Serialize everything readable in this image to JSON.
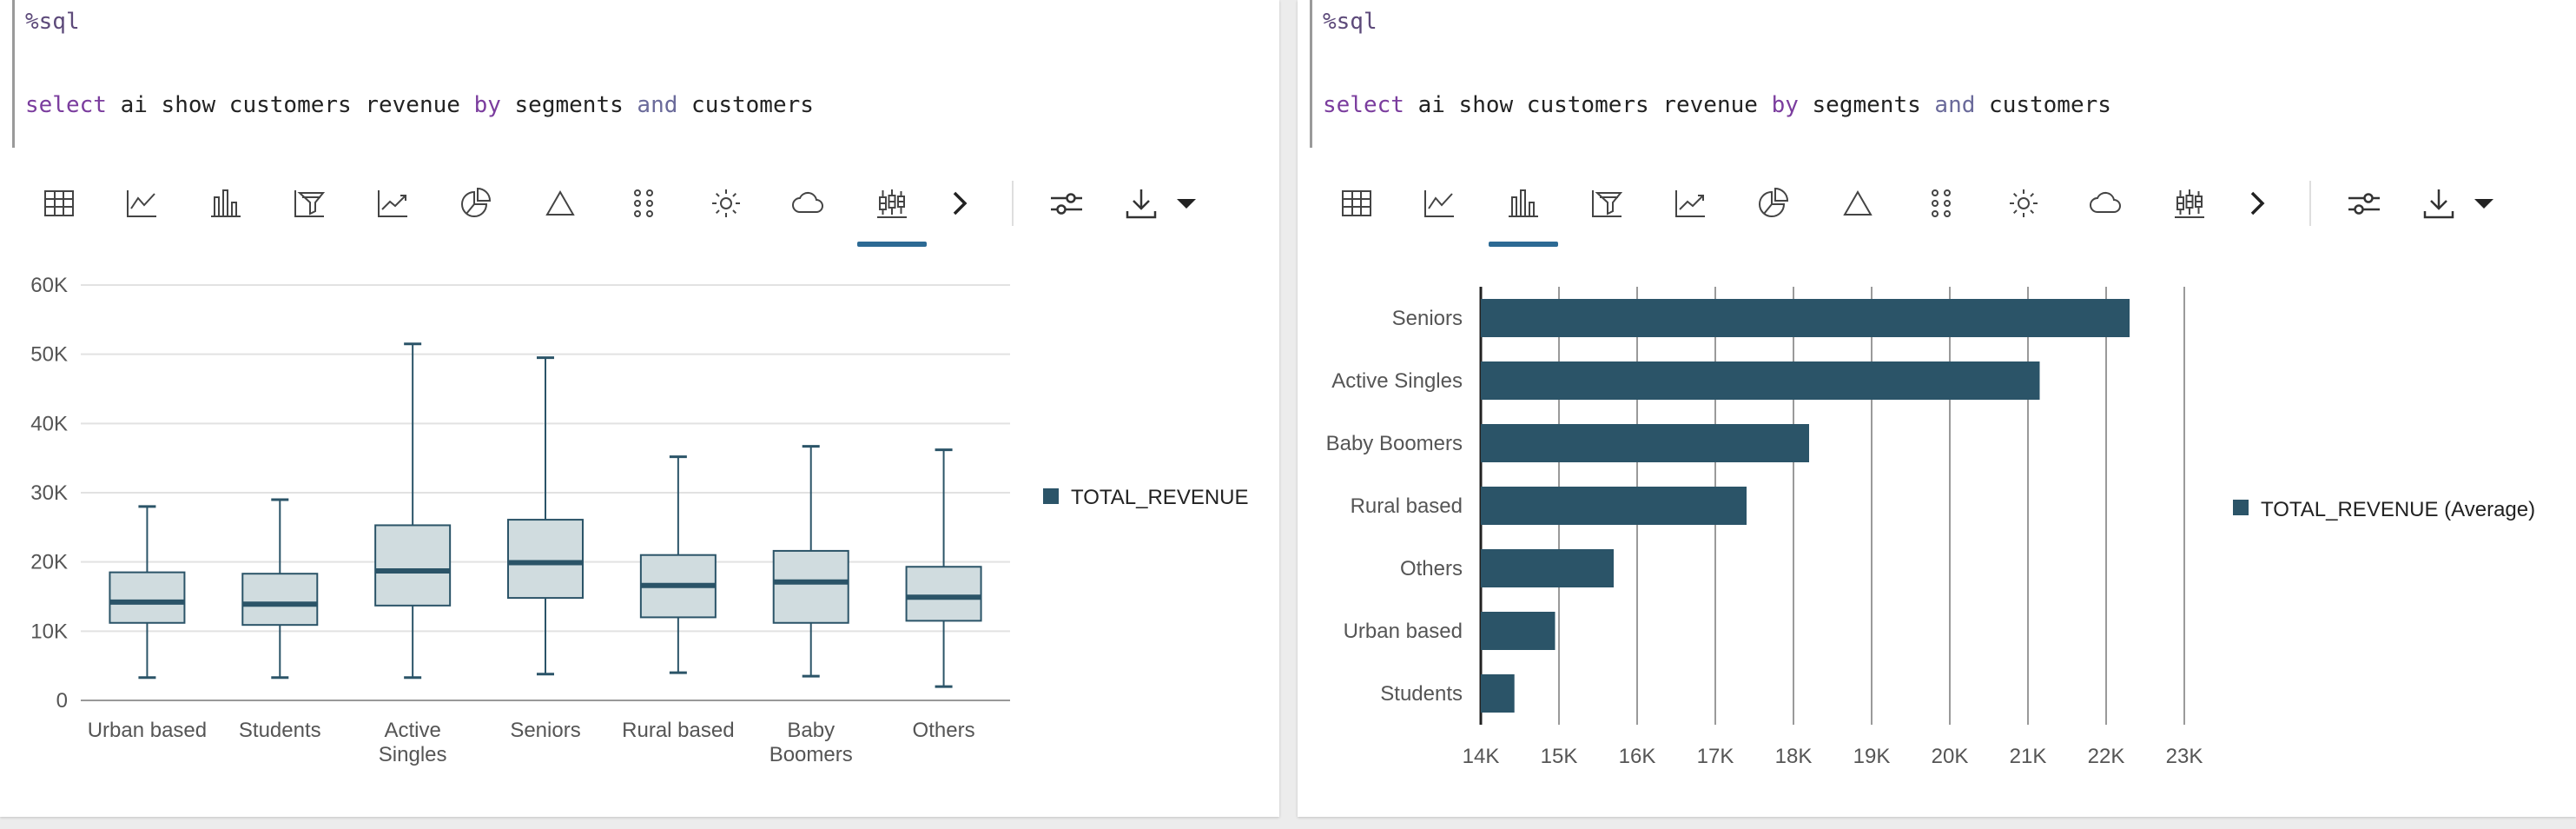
{
  "panels": [
    {
      "editor": {
        "magic": "%sql",
        "query_tokens": [
          {
            "t": "select",
            "c": "kw"
          },
          {
            "t": " ai show customers revenue ",
            "c": ""
          },
          {
            "t": "by",
            "c": "kw"
          },
          {
            "t": " segments ",
            "c": ""
          },
          {
            "t": "and",
            "c": "kw2"
          },
          {
            "t": " customers",
            "c": ""
          }
        ]
      },
      "toolbar": {
        "icons": [
          "table-icon",
          "line-chart-icon",
          "bar-chart-icon",
          "funnel-chart-icon",
          "trend-chart-icon",
          "pie-chart-icon",
          "triangle-chart-icon",
          "dot-matrix-icon",
          "sunburst-icon",
          "cloud-icon",
          "boxplot-icon"
        ],
        "active": "boxplot-icon",
        "more_icon": "chevron-right-icon",
        "settings_icon": "sliders-icon",
        "download_icon": "download-icon",
        "dropdown_icon": "caret-down-icon"
      }
    },
    {
      "editor": {
        "magic": "%sql",
        "query_tokens": [
          {
            "t": "select",
            "c": "kw"
          },
          {
            "t": " ai show customers revenue ",
            "c": ""
          },
          {
            "t": "by",
            "c": "kw"
          },
          {
            "t": " segments ",
            "c": ""
          },
          {
            "t": "and",
            "c": "kw2"
          },
          {
            "t": " customers",
            "c": ""
          }
        ]
      },
      "toolbar": {
        "icons": [
          "table-icon",
          "line-chart-icon",
          "bar-chart-icon",
          "funnel-chart-icon",
          "trend-chart-icon",
          "pie-chart-icon",
          "triangle-chart-icon",
          "dot-matrix-icon",
          "sunburst-icon",
          "cloud-icon",
          "boxplot-icon"
        ],
        "active": "bar-chart-icon",
        "more_icon": "chevron-right-icon",
        "settings_icon": "sliders-icon",
        "download_icon": "download-icon",
        "dropdown_icon": "caret-down-icon"
      }
    }
  ],
  "chart_data": [
    {
      "type": "boxplot",
      "categories": [
        [
          "Urban based"
        ],
        [
          "Students"
        ],
        [
          "Active",
          "Singles"
        ],
        [
          "Seniors"
        ],
        [
          "Rural based"
        ],
        [
          "Baby",
          "Boomers"
        ],
        [
          "Others"
        ]
      ],
      "series": [
        {
          "name": "TOTAL_REVENUE",
          "color": "#2b5468",
          "box_fill": "#d0dcdf",
          "stats": [
            {
              "min": 3300,
              "q1": 11200,
              "median": 14200,
              "q3": 18500,
              "max": 28000
            },
            {
              "min": 3300,
              "q1": 10900,
              "median": 13900,
              "q3": 18300,
              "max": 29000
            },
            {
              "min": 3300,
              "q1": 13700,
              "median": 18700,
              "q3": 25300,
              "max": 51500
            },
            {
              "min": 3800,
              "q1": 14800,
              "median": 19900,
              "q3": 26100,
              "max": 49500
            },
            {
              "min": 4000,
              "q1": 12000,
              "median": 16600,
              "q3": 21000,
              "max": 35200
            },
            {
              "min": 3500,
              "q1": 11200,
              "median": 17100,
              "q3": 21600,
              "max": 36700
            },
            {
              "min": 2000,
              "q1": 11500,
              "median": 14900,
              "q3": 19300,
              "max": 36200
            }
          ]
        }
      ],
      "y_ticks": [
        "0",
        "10K",
        "20K",
        "30K",
        "40K",
        "50K",
        "60K"
      ],
      "ylim": [
        0,
        60000
      ],
      "grid": true,
      "legend": "right"
    },
    {
      "type": "bar",
      "orientation": "horizontal",
      "categories": [
        "Seniors",
        "Active Singles",
        "Baby Boomers",
        "Rural based",
        "Others",
        "Urban based",
        "Students"
      ],
      "series": [
        {
          "name": "TOTAL_REVENUE (Average)",
          "color": "#2b5468",
          "values": [
            22300,
            21150,
            18200,
            17400,
            15700,
            14950,
            14430
          ]
        }
      ],
      "x_ticks": [
        "14K",
        "15K",
        "16K",
        "17K",
        "18K",
        "19K",
        "20K",
        "21K",
        "22K",
        "23K"
      ],
      "xlim": [
        14000,
        23000
      ],
      "grid": true,
      "legend": "right"
    }
  ]
}
